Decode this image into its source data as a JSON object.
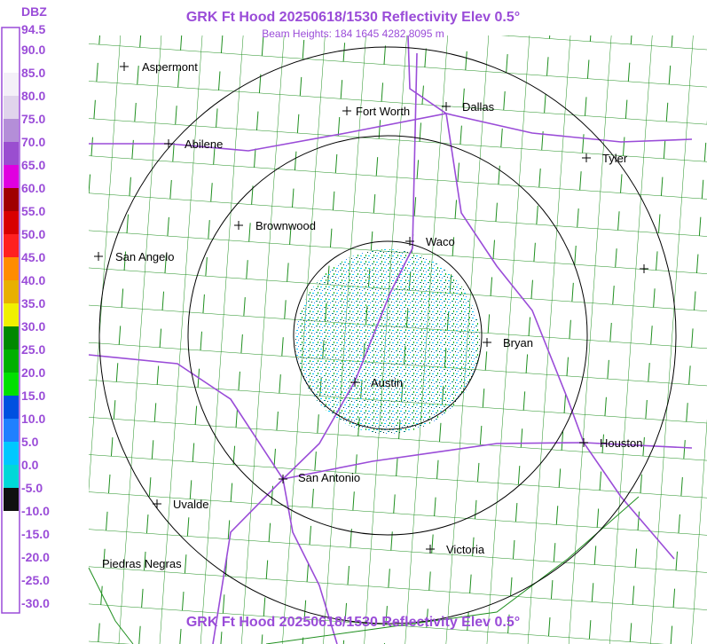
{
  "header": {
    "title": "GRK Ft Hood 20250618/1530 Reflectivity Elev 0.5°",
    "subtitle": "Beam Heights: 184 1645 4282 8095 m",
    "footer": "GRK Ft Hood 20250618/1530 Reflectivity Elev 0.5°"
  },
  "legend": {
    "unit": "DBZ",
    "labels": [
      "94.5",
      "90.0",
      "85.0",
      "80.0",
      "75.0",
      "70.0",
      "65.0",
      "60.0",
      "55.0",
      "50.0",
      "45.0",
      "40.0",
      "35.0",
      "30.0",
      "25.0",
      "20.0",
      "15.0",
      "10.0",
      "5.0",
      "0.0",
      "-5.0",
      "-10.0",
      "-15.0",
      "-20.0",
      "-25.0",
      "-30.0"
    ],
    "colors": [
      "#ffffff",
      "#ffffff",
      "#f4f0f8",
      "#e0d4ec",
      "#b48ed8",
      "#9a4ed0",
      "#e000e0",
      "#a00000",
      "#d80000",
      "#ff2020",
      "#ff8c00",
      "#e8b000",
      "#f0f000",
      "#008800",
      "#00b000",
      "#00e000",
      "#0050e0",
      "#2080ff",
      "#00c8ff",
      "#00d8d8",
      "#101010",
      "#ffffff",
      "#ffffff",
      "#ffffff",
      "#ffffff"
    ]
  },
  "cities": [
    {
      "label": "Aspermont"
    },
    {
      "label": "Fort Worth"
    },
    {
      "label": "Dallas"
    },
    {
      "label": "Abilene"
    },
    {
      "label": "Tyler"
    },
    {
      "label": "Brownwood"
    },
    {
      "label": "Waco"
    },
    {
      "label": "San Angelo"
    },
    {
      "label": "Bryan"
    },
    {
      "label": "Austin"
    },
    {
      "label": "Houston"
    },
    {
      "label": "San Antonio"
    },
    {
      "label": "Uvalde"
    },
    {
      "label": "Victoria"
    },
    {
      "label": "Piedras Negras"
    }
  ]
}
